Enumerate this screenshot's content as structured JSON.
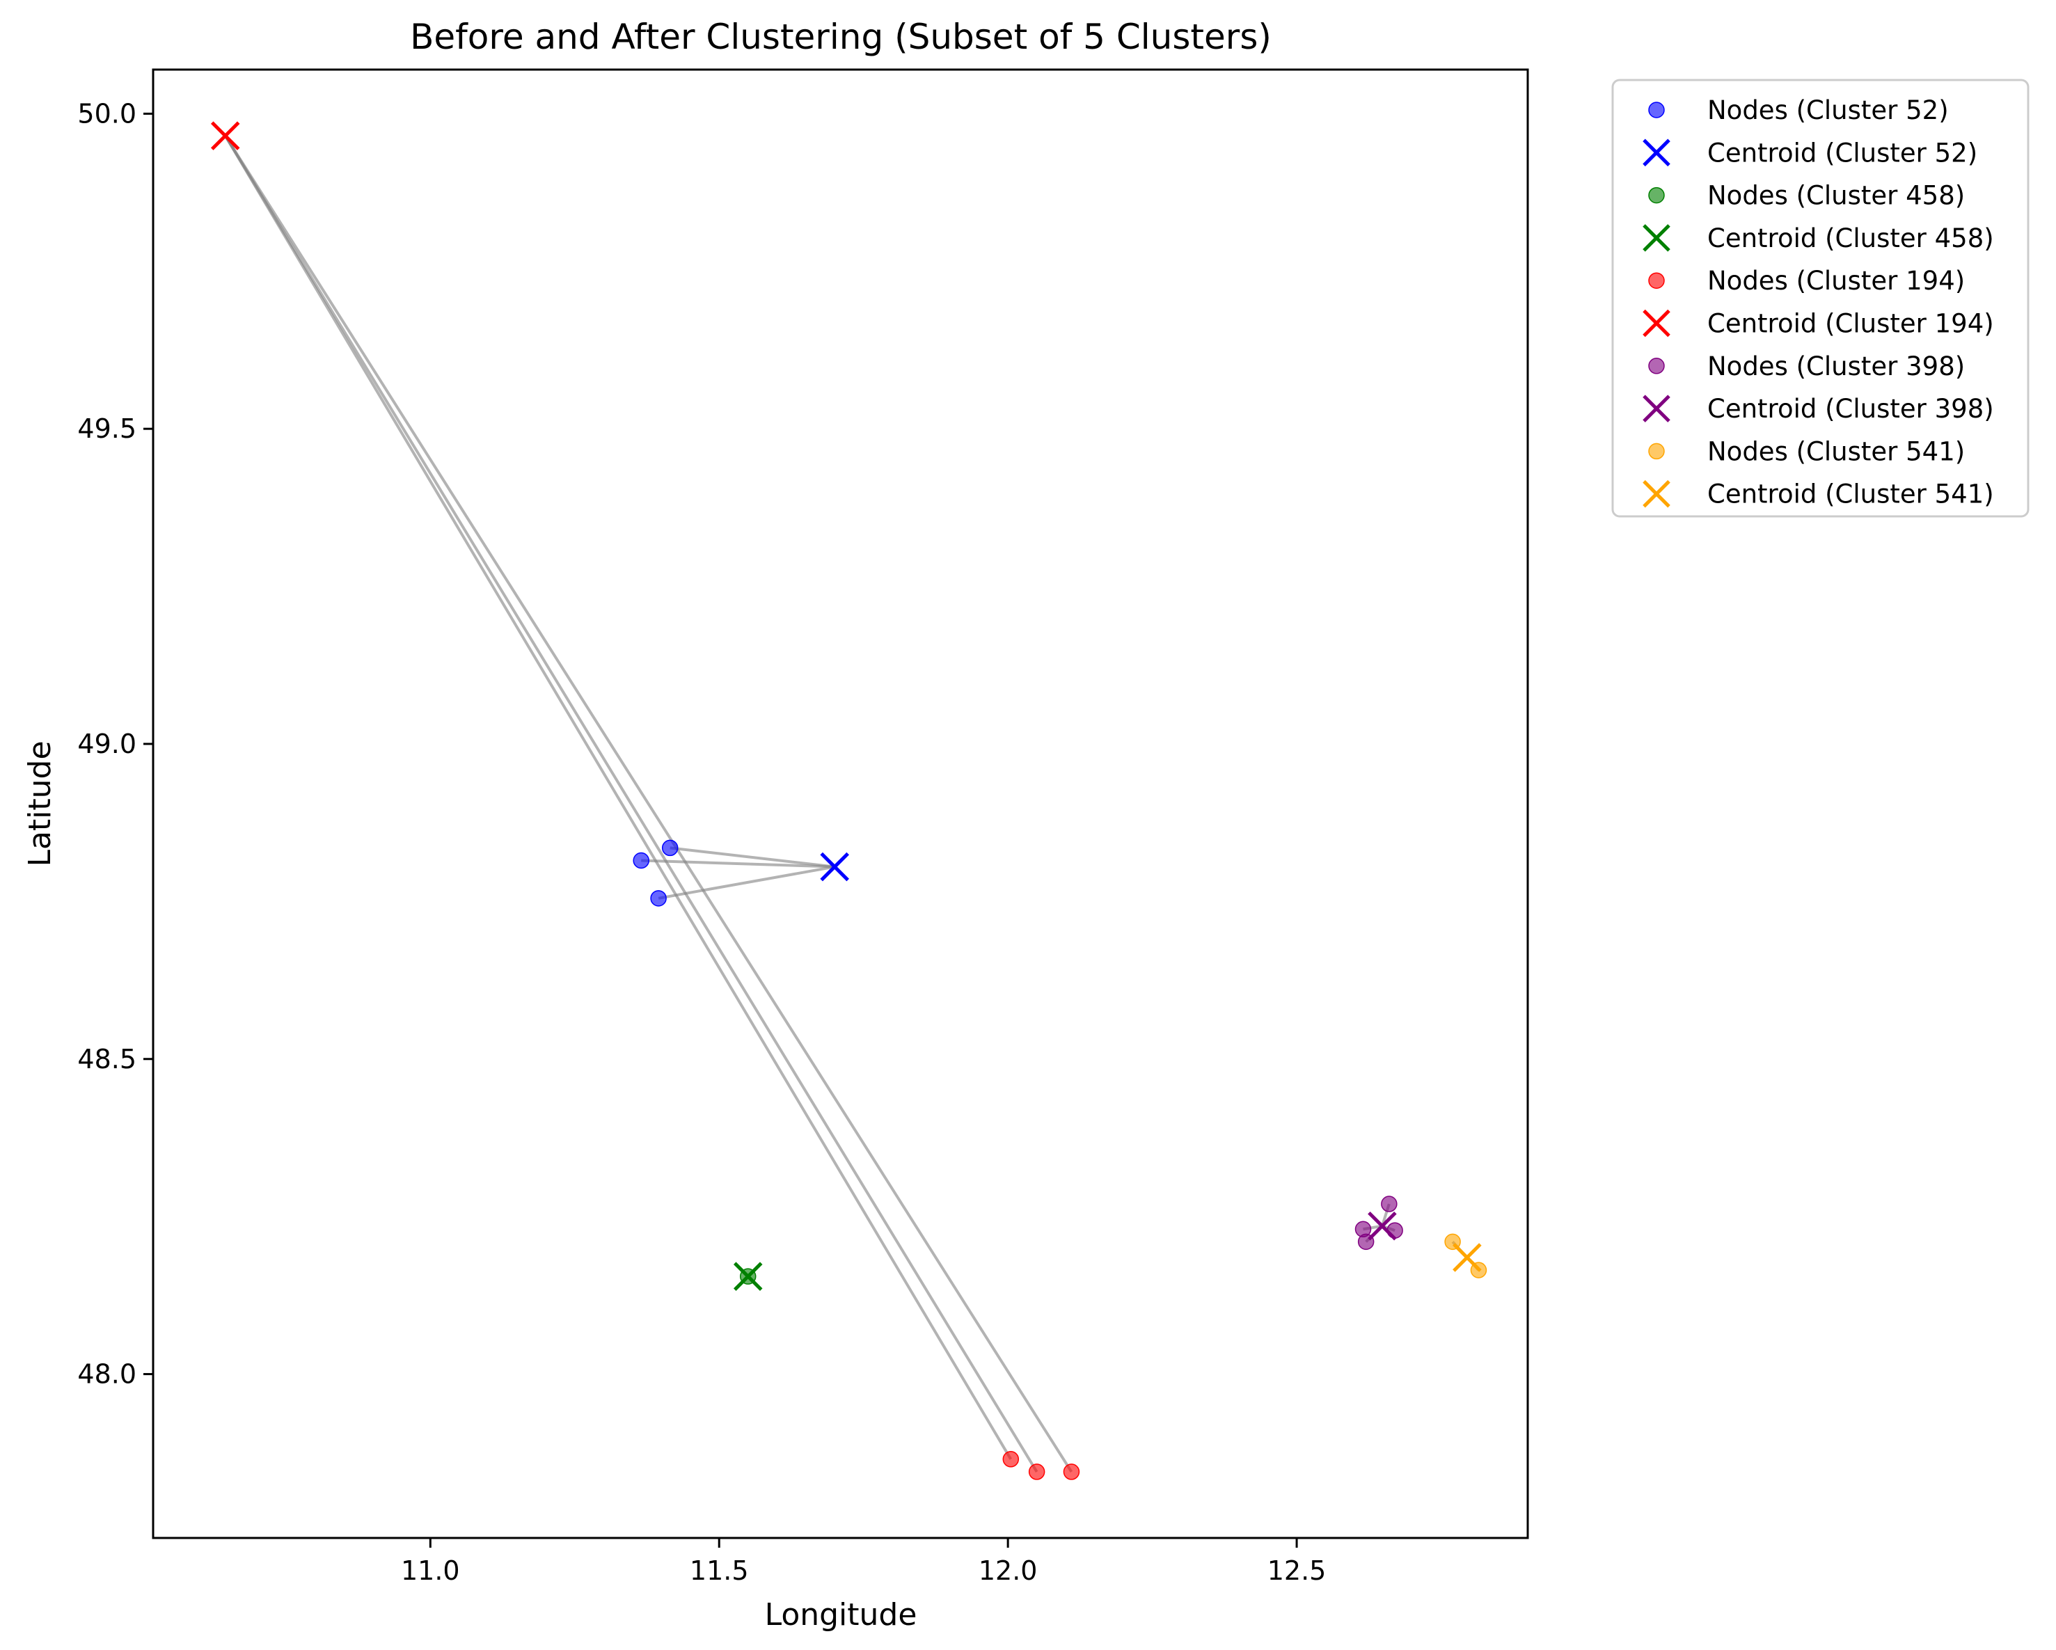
{
  "chart_data": {
    "type": "scatter",
    "title": "Before and After Clustering (Subset of 5 Clusters)",
    "xlabel": "Longitude",
    "ylabel": "Latitude",
    "xlim": [
      10.52,
      12.9
    ],
    "ylim": [
      47.74,
      50.07
    ],
    "xticks": [
      11.0,
      11.5,
      12.0,
      12.5
    ],
    "xtick_labels": [
      "11.0",
      "11.5",
      "12.0",
      "12.5"
    ],
    "yticks": [
      48.0,
      48.5,
      49.0,
      49.5,
      50.0
    ],
    "ytick_labels": [
      "48.0",
      "48.5",
      "49.0",
      "49.5",
      "50.0"
    ],
    "grid": false,
    "legend_position": "outside-top-right",
    "link_color": "#808080",
    "clusters": [
      {
        "id": 52,
        "color": "#0000ff",
        "nodes_label": "Nodes (Cluster 52)",
        "centroid_label": "Centroid (Cluster 52)",
        "centroid": [
          11.7,
          48.805
        ],
        "nodes": [
          [
            11.365,
            48.815
          ],
          [
            11.415,
            48.835
          ],
          [
            11.395,
            48.755
          ]
        ]
      },
      {
        "id": 458,
        "color": "#008000",
        "nodes_label": "Nodes (Cluster 458)",
        "centroid_label": "Centroid (Cluster 458)",
        "centroid": [
          11.55,
          48.155
        ],
        "nodes": [
          [
            11.55,
            48.155
          ]
        ]
      },
      {
        "id": 194,
        "color": "#ff0000",
        "nodes_label": "Nodes (Cluster 194)",
        "centroid_label": "Centroid (Cluster 194)",
        "centroid": [
          10.645,
          49.965
        ],
        "nodes": [
          [
            12.005,
            47.865
          ],
          [
            12.05,
            47.845
          ],
          [
            12.11,
            47.845
          ]
        ]
      },
      {
        "id": 398,
        "color": "#800080",
        "nodes_label": "Nodes (Cluster 398)",
        "centroid_label": "Centroid (Cluster 398)",
        "centroid": [
          12.648,
          48.235
        ],
        "nodes": [
          [
            12.615,
            48.23
          ],
          [
            12.62,
            48.21
          ],
          [
            12.66,
            48.27
          ],
          [
            12.67,
            48.228
          ]
        ]
      },
      {
        "id": 541,
        "color": "#ffa500",
        "nodes_label": "Nodes (Cluster 541)",
        "centroid_label": "Centroid (Cluster 541)",
        "centroid": [
          12.795,
          48.185
        ],
        "nodes": [
          [
            12.77,
            48.21
          ],
          [
            12.815,
            48.165
          ]
        ]
      }
    ]
  }
}
